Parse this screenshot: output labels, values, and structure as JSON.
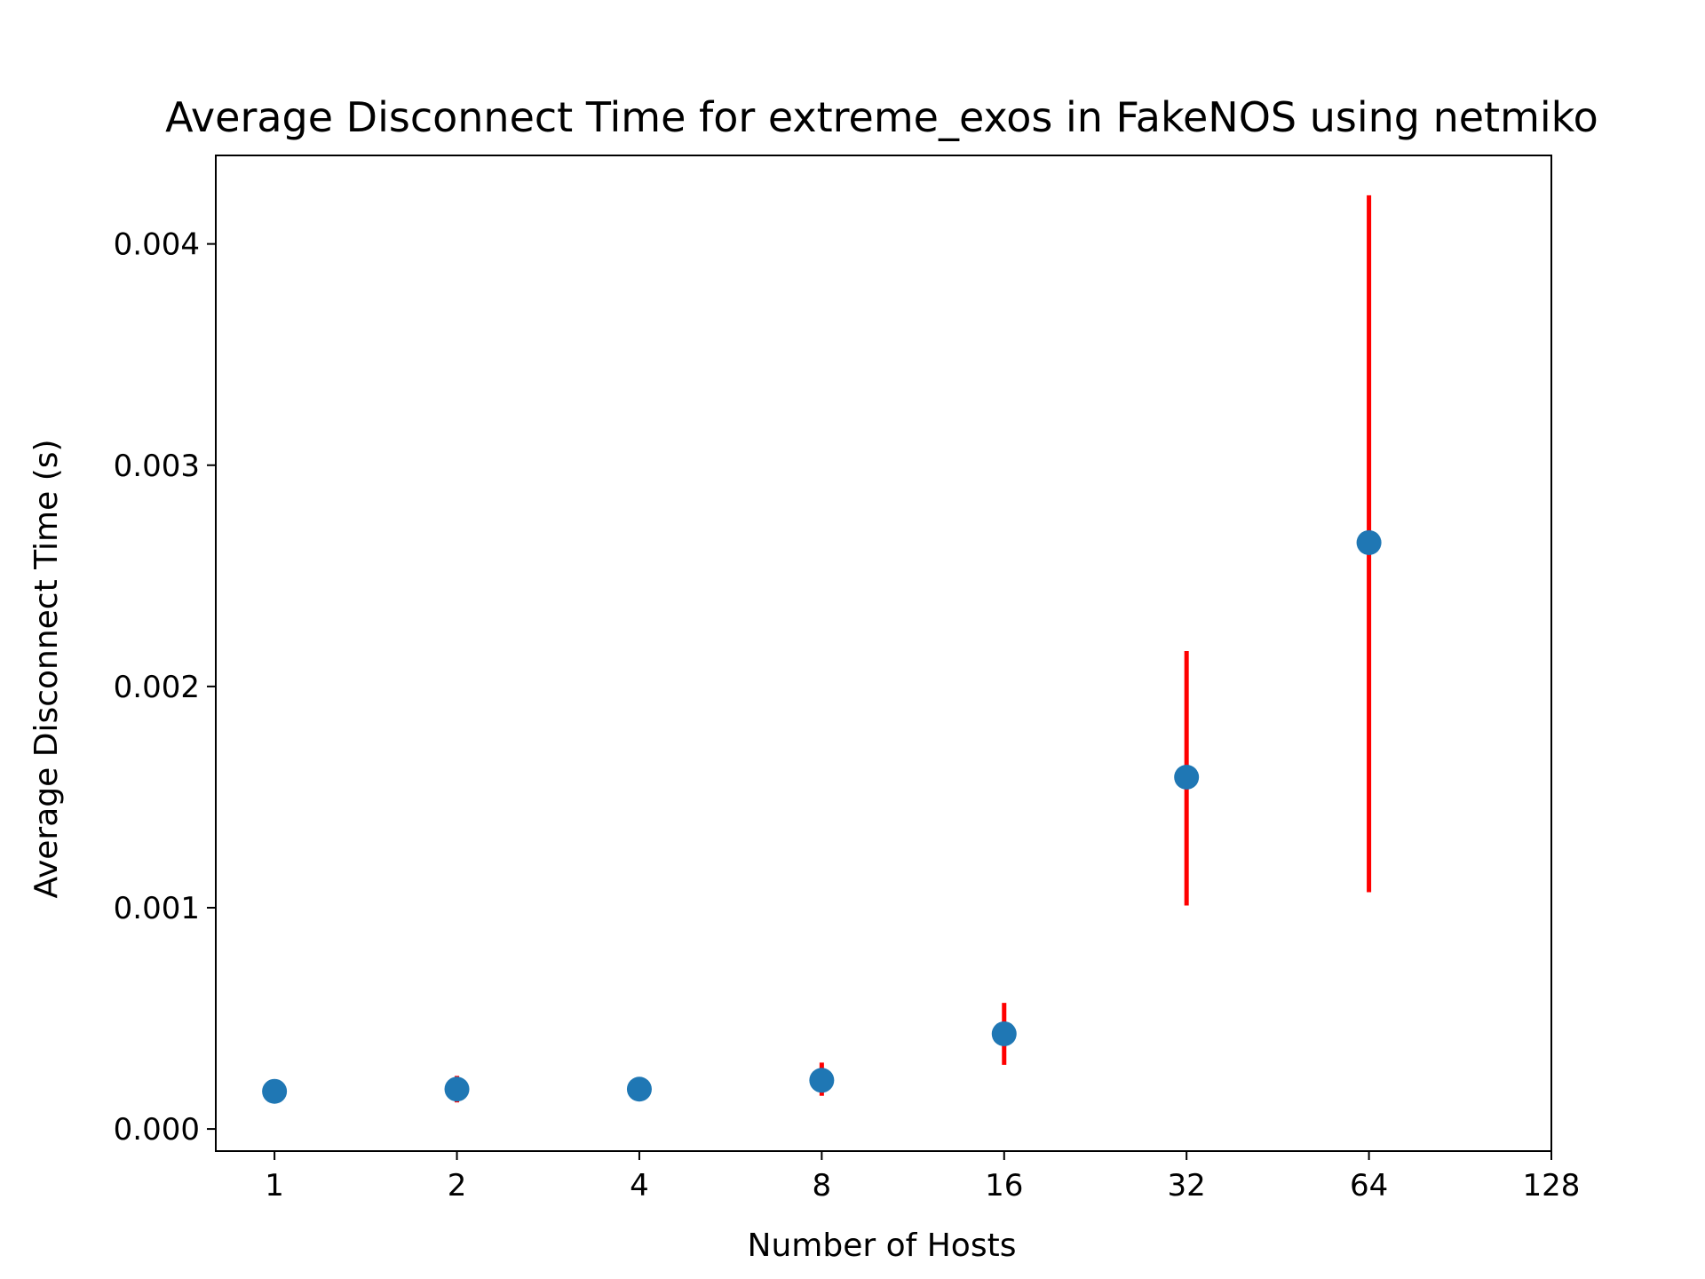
{
  "chart_data": {
    "type": "scatter",
    "title": "Average Disconnect Time for extreme_exos in FakeNOS using netmiko",
    "xlabel": "Number of Hosts",
    "ylabel": "Average Disconnect Time (s)",
    "x_scale": "log2",
    "xlim": [
      0.8,
      128
    ],
    "ylim": [
      -0.0001,
      0.0044
    ],
    "x_ticks": [
      1,
      2,
      4,
      8,
      16,
      32,
      64,
      128
    ],
    "x_tick_labels": [
      "1",
      "2",
      "4",
      "8",
      "16",
      "32",
      "64",
      "128"
    ],
    "y_ticks": [
      0.0,
      0.001,
      0.002,
      0.003,
      0.004
    ],
    "y_tick_labels": [
      "0.000",
      "0.001",
      "0.002",
      "0.003",
      "0.004"
    ],
    "grid": false,
    "series": [
      {
        "x": [
          1,
          2,
          4,
          8,
          16,
          32,
          64
        ],
        "y": [
          0.00017,
          0.00018,
          0.00018,
          0.00022,
          0.00043,
          0.00159,
          0.00265
        ],
        "err_low": [
          0.00017,
          0.00012,
          0.00018,
          0.00015,
          0.00029,
          0.00101,
          0.00107
        ],
        "err_high": [
          0.00017,
          0.00024,
          0.00018,
          0.0003,
          0.00057,
          0.00216,
          0.00422
        ],
        "color": "#1f77b4",
        "error_color": "#ff0000"
      }
    ]
  }
}
